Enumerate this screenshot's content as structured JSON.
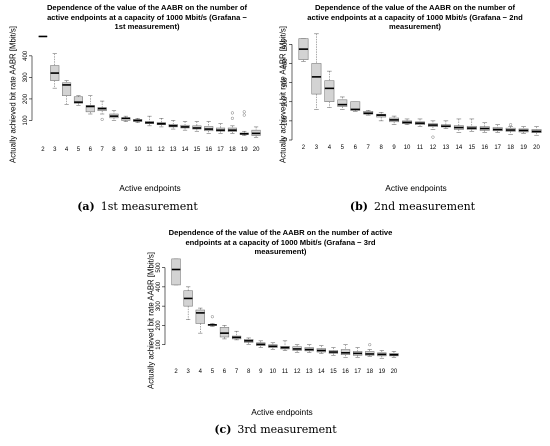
{
  "chart_data": [
    {
      "type": "boxplot",
      "title": "Dependence of the value of the AABR on the number of active endpoints at a capacity of 1000 Mbit/s (Grafana − 1st measurement)",
      "xlabel": "Active endpoints",
      "ylabel": "Actually achieved bit rate AABR [Mbit/s]",
      "caption_label": "(a)",
      "caption_text": "1st measurement",
      "ylim": [
        0,
        520
      ],
      "yticks": [
        100,
        200,
        300,
        400
      ],
      "grid": false,
      "categories": [
        "2",
        "3",
        "4",
        "5",
        "6",
        "7",
        "8",
        "9",
        "10",
        "11",
        "12",
        "13",
        "14",
        "15",
        "16",
        "17",
        "18",
        "19",
        "20"
      ],
      "boxes": [
        {
          "min": 490,
          "q1": 490,
          "median": 490,
          "q3": 490,
          "max": 490,
          "outliers": []
        },
        {
          "min": 250,
          "q1": 285,
          "median": 320,
          "q3": 355,
          "max": 410,
          "outliers": []
        },
        {
          "min": 175,
          "q1": 215,
          "median": 265,
          "q3": 275,
          "max": 285,
          "outliers": []
        },
        {
          "min": 170,
          "q1": 180,
          "median": 185,
          "q3": 210,
          "max": 215,
          "outliers": []
        },
        {
          "min": 130,
          "q1": 140,
          "median": 165,
          "q3": 170,
          "max": 215,
          "outliers": []
        },
        {
          "min": 130,
          "q1": 145,
          "median": 155,
          "q3": 160,
          "max": 190,
          "outliers": [
            105
          ]
        },
        {
          "min": 100,
          "q1": 112,
          "median": 120,
          "q3": 130,
          "max": 145,
          "outliers": []
        },
        {
          "min": 95,
          "q1": 100,
          "median": 110,
          "q3": 113,
          "max": 120,
          "outliers": []
        },
        {
          "min": 90,
          "q1": 95,
          "median": 100,
          "q3": 105,
          "max": 110,
          "outliers": []
        },
        {
          "min": 75,
          "q1": 85,
          "median": 90,
          "q3": 95,
          "max": 120,
          "outliers": []
        },
        {
          "min": 70,
          "q1": 80,
          "median": 85,
          "q3": 90,
          "max": 110,
          "outliers": []
        },
        {
          "min": 60,
          "q1": 70,
          "median": 75,
          "q3": 82,
          "max": 100,
          "outliers": []
        },
        {
          "min": 55,
          "q1": 65,
          "median": 70,
          "q3": 78,
          "max": 95,
          "outliers": []
        },
        {
          "min": 50,
          "q1": 60,
          "median": 65,
          "q3": 75,
          "max": 95,
          "outliers": []
        },
        {
          "min": 40,
          "q1": 52,
          "median": 60,
          "q3": 72,
          "max": 95,
          "outliers": []
        },
        {
          "min": 40,
          "q1": 50,
          "median": 55,
          "q3": 65,
          "max": 85,
          "outliers": []
        },
        {
          "min": 40,
          "q1": 48,
          "median": 55,
          "q3": 65,
          "max": 75,
          "outliers": [
            110,
            135
          ]
        },
        {
          "min": 30,
          "q1": 35,
          "median": 38,
          "q3": 42,
          "max": 50,
          "outliers": [
            125,
            140
          ]
        },
        {
          "min": 20,
          "q1": 30,
          "median": 40,
          "q3": 55,
          "max": 70,
          "outliers": []
        }
      ]
    },
    {
      "type": "boxplot",
      "title": "Dependence of the value of the AABR on the number of active endpoints at a capacity of 1000 Mbit/s (Grafana − 2nd measurement)",
      "xlabel": "Active endpoints",
      "ylabel": "Actually achieved bit rate AABR [Mbit/s]",
      "caption_label": "(b)",
      "caption_text": "2nd measurement",
      "ylim": [
        0,
        575
      ],
      "yticks": [
        0,
        100,
        200,
        300,
        400,
        500
      ],
      "grid": false,
      "categories": [
        "2",
        "3",
        "4",
        "5",
        "6",
        "7",
        "8",
        "9",
        "10",
        "11",
        "12",
        "13",
        "14",
        "15",
        "16",
        "17",
        "18",
        "19",
        "20"
      ],
      "boxes": [
        {
          "min": 410,
          "q1": 420,
          "median": 475,
          "q3": 530,
          "max": 530,
          "outliers": []
        },
        {
          "min": 160,
          "q1": 240,
          "median": 330,
          "q3": 400,
          "max": 555,
          "outliers": []
        },
        {
          "min": 170,
          "q1": 200,
          "median": 270,
          "q3": 310,
          "max": 360,
          "outliers": []
        },
        {
          "min": 160,
          "q1": 175,
          "median": 185,
          "q3": 210,
          "max": 225,
          "outliers": []
        },
        {
          "min": 150,
          "q1": 155,
          "median": 160,
          "q3": 200,
          "max": 200,
          "outliers": []
        },
        {
          "min": 130,
          "q1": 135,
          "median": 140,
          "q3": 150,
          "max": 155,
          "outliers": []
        },
        {
          "min": 100,
          "q1": 120,
          "median": 130,
          "q3": 135,
          "max": 145,
          "outliers": []
        },
        {
          "min": 80,
          "q1": 95,
          "median": 105,
          "q3": 115,
          "max": 125,
          "outliers": []
        },
        {
          "min": 80,
          "q1": 85,
          "median": 92,
          "q3": 100,
          "max": 110,
          "outliers": []
        },
        {
          "min": 70,
          "q1": 80,
          "median": 88,
          "q3": 95,
          "max": 110,
          "outliers": []
        },
        {
          "min": 55,
          "q1": 70,
          "median": 78,
          "q3": 85,
          "max": 100,
          "outliers": [
            15
          ]
        },
        {
          "min": 60,
          "q1": 68,
          "median": 72,
          "q3": 80,
          "max": 100,
          "outliers": []
        },
        {
          "min": 40,
          "q1": 55,
          "median": 65,
          "q3": 75,
          "max": 110,
          "outliers": []
        },
        {
          "min": 45,
          "q1": 55,
          "median": 62,
          "q3": 72,
          "max": 110,
          "outliers": []
        },
        {
          "min": 40,
          "q1": 50,
          "median": 60,
          "q3": 70,
          "max": 90,
          "outliers": []
        },
        {
          "min": 40,
          "q1": 48,
          "median": 55,
          "q3": 65,
          "max": 80,
          "outliers": []
        },
        {
          "min": 30,
          "q1": 45,
          "median": 52,
          "q3": 62,
          "max": 70,
          "outliers": [
            80
          ]
        },
        {
          "min": 35,
          "q1": 42,
          "median": 50,
          "q3": 58,
          "max": 70,
          "outliers": []
        },
        {
          "min": 25,
          "q1": 38,
          "median": 45,
          "q3": 55,
          "max": 70,
          "outliers": []
        }
      ]
    },
    {
      "type": "boxplot",
      "title": "Dependence of the value of the AABR on the number of active endpoints at a capacity of 1000 Mbit/s (Grafana − 3rd measurement)",
      "xlabel": "Active endpoints",
      "ylabel": "Actually achieved bit rate AABR [Mbit/s]",
      "caption_label": "(c)",
      "caption_text": "3rd measurement",
      "ylim": [
        0,
        560
      ],
      "yticks": [
        100,
        200,
        300,
        400,
        500
      ],
      "grid": false,
      "categories": [
        "2",
        "3",
        "4",
        "5",
        "6",
        "7",
        "8",
        "9",
        "10",
        "11",
        "12",
        "13",
        "14",
        "15",
        "16",
        "17",
        "18",
        "19",
        "20"
      ],
      "boxes": [
        {
          "min": 410,
          "q1": 410,
          "median": 490,
          "q3": 545,
          "max": 545,
          "outliers": []
        },
        {
          "min": 230,
          "q1": 300,
          "median": 340,
          "q3": 380,
          "max": 400,
          "outliers": []
        },
        {
          "min": 160,
          "q1": 210,
          "median": 265,
          "q3": 280,
          "max": 290,
          "outliers": []
        },
        {
          "min": 195,
          "q1": 200,
          "median": 203,
          "q3": 205,
          "max": 210,
          "outliers": [
            245
          ]
        },
        {
          "min": 130,
          "q1": 140,
          "median": 160,
          "q3": 190,
          "max": 200,
          "outliers": []
        },
        {
          "min": 125,
          "q1": 130,
          "median": 138,
          "q3": 145,
          "max": 170,
          "outliers": []
        },
        {
          "min": 100,
          "q1": 112,
          "median": 120,
          "q3": 128,
          "max": 135,
          "outliers": []
        },
        {
          "min": 85,
          "q1": 95,
          "median": 102,
          "q3": 110,
          "max": 120,
          "outliers": []
        },
        {
          "min": 75,
          "q1": 85,
          "median": 92,
          "q3": 100,
          "max": 110,
          "outliers": []
        },
        {
          "min": 70,
          "q1": 78,
          "median": 85,
          "q3": 92,
          "max": 120,
          "outliers": []
        },
        {
          "min": 60,
          "q1": 70,
          "median": 78,
          "q3": 90,
          "max": 100,
          "outliers": []
        },
        {
          "min": 60,
          "q1": 68,
          "median": 75,
          "q3": 85,
          "max": 100,
          "outliers": []
        },
        {
          "min": 55,
          "q1": 62,
          "median": 70,
          "q3": 80,
          "max": 95,
          "outliers": []
        },
        {
          "min": 45,
          "q1": 55,
          "median": 62,
          "q3": 70,
          "max": 85,
          "outliers": []
        },
        {
          "min": 35,
          "q1": 48,
          "median": 58,
          "q3": 75,
          "max": 100,
          "outliers": []
        },
        {
          "min": 35,
          "q1": 45,
          "median": 55,
          "q3": 65,
          "max": 85,
          "outliers": []
        },
        {
          "min": 40,
          "q1": 45,
          "median": 52,
          "q3": 65,
          "max": 75,
          "outliers": [
            100
          ]
        },
        {
          "min": 30,
          "q1": 42,
          "median": 50,
          "q3": 58,
          "max": 70,
          "outliers": []
        },
        {
          "min": 35,
          "q1": 42,
          "median": 48,
          "q3": 55,
          "max": 65,
          "outliers": []
        }
      ]
    }
  ]
}
